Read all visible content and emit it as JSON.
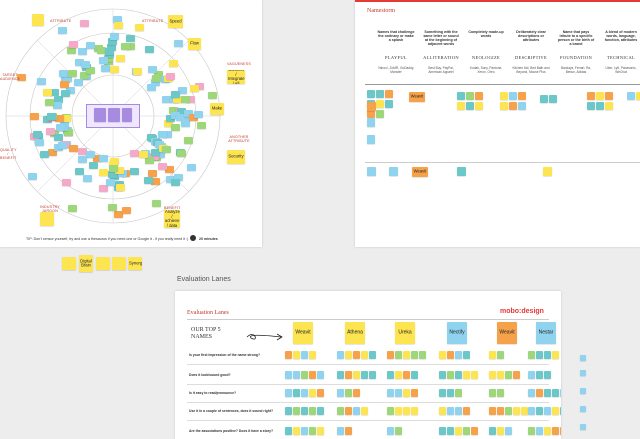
{
  "colors": {
    "yellow": "#fde451",
    "blue": "#8fd3ee",
    "teal": "#6cc7c9",
    "green": "#9ed67a",
    "orange": "#f5a24b",
    "pink": "#f5a9c8",
    "purple": "#a78be0",
    "red": "#e53935",
    "canvas": "#ededed"
  },
  "board1": {
    "ring_labels": [
      "ATTRIBUTE",
      "ATTRIBUTE",
      "TARGET AUDIENCE",
      "VAGUENESS",
      "QUALITY / BENEFIT",
      "ANOTHER ATTRIBUTE",
      "INDUSTRY JARGON",
      "BENEFIT"
    ],
    "notes": [
      "Speed",
      "Flow",
      "Connect / Integrate / All",
      "Make",
      "Security",
      "Analyze / achieve / data"
    ],
    "tip": "TIP: Don't censor yourself, try and use a thesaurus if you need one or Google it - if you really need it :)",
    "timer": "20 minutes"
  },
  "board2": {
    "title": "Namestorm",
    "columns": [
      {
        "title": "Names that challenge the ordinary or make a splash",
        "cat": "PLAYFUL",
        "examples": "Yahoo!, ZoMR, GoDaddy, Monster"
      },
      {
        "title": "Something with the same letter or sound at the beginning of adjacent words",
        "cat": "ALLITERATION",
        "examples": "Best Buy, PayPal, American Apparel"
      },
      {
        "title": "Completely made-up words",
        "cat": "NEOLOGIZE",
        "examples": "Kodak, Sony, Pantone, Xerox, Oreo"
      },
      {
        "title": "Deliberately clear descriptions or attributes",
        "cat": "DESCRIPTIVE",
        "examples": "Kitchen Aid, Bed Bath and Beyond, Mouse Plus"
      },
      {
        "title": "Name that pays tribute to a specific person or the birth of a brand",
        "cat": "FOUNDATION",
        "examples": "Barclays, Ferrari, Ra, Benun, Adidas"
      },
      {
        "title": "A blend of modern words, language, function, attributes",
        "cat": "TECHNICAL",
        "examples": "Uber, Lyft, Panasonic, WeChat"
      }
    ],
    "notes": [
      "Weavit",
      "Weavit"
    ]
  },
  "board1_footer": [
    "Digital Brain",
    "Synergy"
  ],
  "section_label": "Evaluation Lanes",
  "board3": {
    "title": "Evaluation Lanes",
    "logo": "mobo:design",
    "top_label": "OUR TOP 5 NAMES",
    "names": [
      "Weavit",
      "Athena",
      "Ureka",
      "Nectify",
      "Weavit",
      "Nestar"
    ],
    "questions": [
      "Is your first impression of the name strong?",
      "Does it look/sound good?",
      "Is it easy to read/pronounce?",
      "Use it in a couple of sentences, does it sound right?",
      "Are the associations positive? Does it have a story?"
    ]
  }
}
